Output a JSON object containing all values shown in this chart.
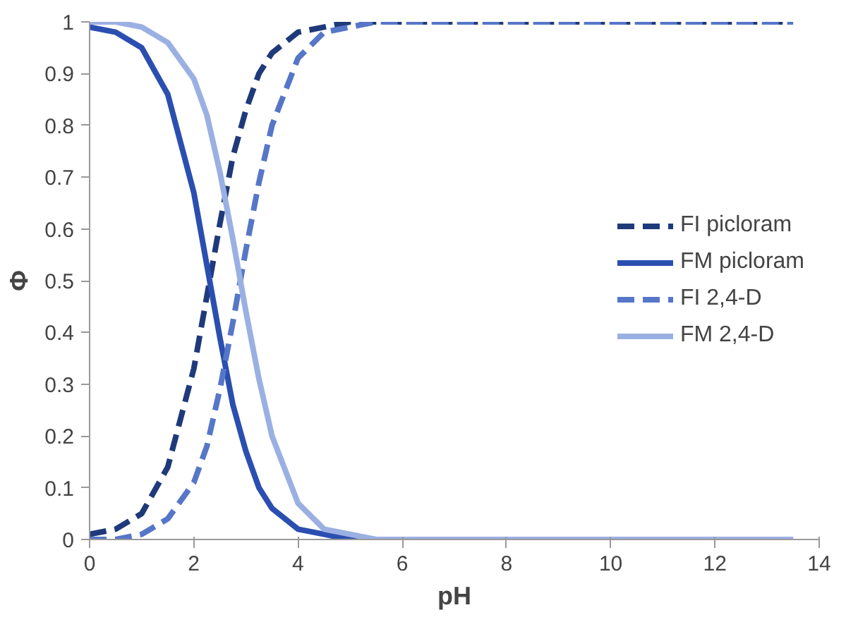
{
  "chart_data": {
    "type": "line",
    "xlabel": "pH",
    "ylabel": "Φ",
    "x": [
      0,
      0.5,
      1,
      1.5,
      2,
      2.25,
      2.5,
      2.75,
      3,
      3.25,
      3.5,
      4,
      4.5,
      5,
      5.5,
      6,
      7,
      8,
      10,
      12,
      13.5
    ],
    "series": [
      {
        "name": "FI picloram",
        "color": "#1f3a7a",
        "line_style": "dashed",
        "values": [
          0.01,
          0.02,
          0.05,
          0.14,
          0.33,
          0.47,
          0.61,
          0.74,
          0.83,
          0.9,
          0.94,
          0.98,
          0.99,
          1,
          1,
          1,
          1,
          1,
          1,
          1,
          1
        ]
      },
      {
        "name": "FM picloram",
        "color": "#2b4fb0",
        "line_style": "solid",
        "values": [
          0.99,
          0.98,
          0.95,
          0.86,
          0.67,
          0.53,
          0.39,
          0.26,
          0.17,
          0.1,
          0.06,
          0.02,
          0.01,
          0,
          0,
          0,
          0,
          0,
          0,
          0,
          0
        ]
      },
      {
        "name": "FI 2,4-D",
        "color": "#5676c8",
        "line_style": "dashed",
        "values": [
          0,
          0,
          0.01,
          0.04,
          0.11,
          0.18,
          0.29,
          0.42,
          0.56,
          0.69,
          0.8,
          0.93,
          0.98,
          0.99,
          1,
          1,
          1,
          1,
          1,
          1,
          1
        ]
      },
      {
        "name": "FM 2,4-D",
        "color": "#9bb0e2",
        "line_style": "solid",
        "values": [
          1,
          1,
          0.99,
          0.96,
          0.89,
          0.82,
          0.71,
          0.58,
          0.44,
          0.31,
          0.2,
          0.07,
          0.02,
          0.01,
          0,
          0,
          0,
          0,
          0,
          0,
          0
        ]
      }
    ],
    "xlim": [
      0,
      14
    ],
    "ylim": [
      0,
      1
    ],
    "xticks": [
      0,
      2,
      4,
      6,
      8,
      10,
      12,
      14
    ],
    "yticks": [
      0,
      0.1,
      0.2,
      0.3,
      0.4,
      0.5,
      0.6,
      0.7,
      0.8,
      0.9,
      1
    ],
    "legend": "right",
    "grid": false
  }
}
